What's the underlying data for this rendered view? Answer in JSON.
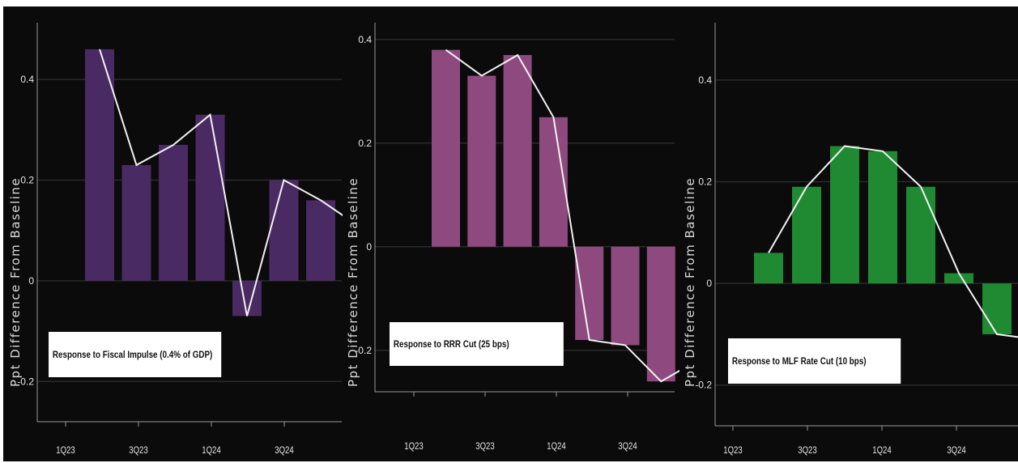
{
  "chart_data": [
    {
      "type": "bar",
      "legend": "Response to Fiscal Impulse (0.4% of GDP)",
      "ylabel": "Ppt Difference From Baseline",
      "x_ticks": [
        "1Q23",
        "3Q23",
        "1Q24",
        "3Q24"
      ],
      "y_ticks": [
        "0.4",
        "0.2",
        "0",
        "-0.2"
      ],
      "y_tick_values": [
        0.4,
        0.2,
        0,
        -0.2
      ],
      "ylim": [
        -0.28,
        0.5
      ],
      "bar_color": "#4a2a63",
      "line_color": "#f2f2f2",
      "values": [
        0.46,
        0.23,
        0.27,
        0.33,
        -0.07,
        0.2,
        0.16
      ],
      "line_values": [
        0.46,
        0.23,
        0.27,
        0.33,
        -0.07,
        0.2,
        0.16,
        0.11
      ]
    },
    {
      "type": "bar",
      "legend": "Response to RRR Cut (25 bps)",
      "ylabel": "Ppt Difference From Baseline",
      "x_ticks": [
        "1Q23",
        "3Q23",
        "1Q24",
        "3Q24"
      ],
      "y_ticks": [
        "0.4",
        "0.2",
        "0",
        "-0.2"
      ],
      "y_tick_values": [
        0.4,
        0.2,
        0,
        -0.2
      ],
      "ylim": [
        -0.28,
        0.42
      ],
      "bar_color": "#8e4a7f",
      "line_color": "#f2f2f2",
      "values": [
        0.38,
        0.33,
        0.37,
        0.25,
        -0.18,
        -0.19,
        -0.26
      ],
      "line_values": [
        0.38,
        0.33,
        0.37,
        0.25,
        -0.18,
        -0.19,
        -0.26,
        -0.22
      ]
    },
    {
      "type": "bar",
      "legend": "Response to MLF Rate Cut (10 bps)",
      "ylabel": "Ppt Difference From Baseline",
      "x_ticks": [
        "1Q23",
        "3Q23",
        "1Q24",
        "3Q24"
      ],
      "y_ticks": [
        "0.4",
        "0.2",
        "0",
        "-0.2"
      ],
      "y_tick_values": [
        0.4,
        0.2,
        0,
        -0.2
      ],
      "ylim": [
        -0.28,
        0.5
      ],
      "bar_color": "#1f8a32",
      "line_color": "#f2f2f2",
      "values": [
        0.06,
        0.19,
        0.27,
        0.26,
        0.19,
        0.02,
        -0.1
      ],
      "line_values": [
        0.06,
        0.19,
        0.27,
        0.26,
        0.19,
        0.02,
        -0.1,
        -0.11
      ]
    }
  ]
}
